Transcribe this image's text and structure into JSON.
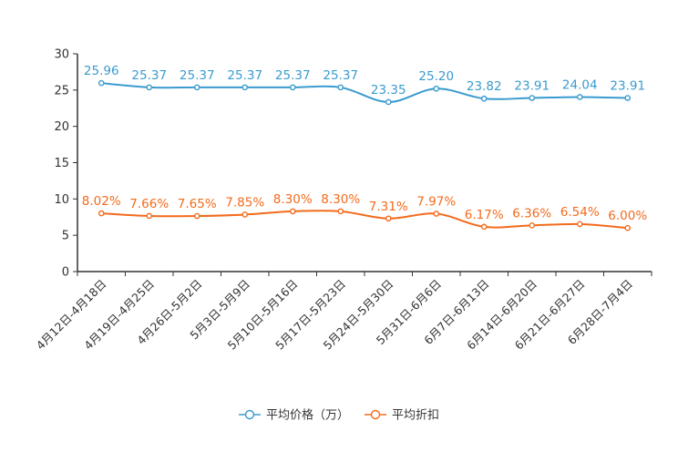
{
  "colors": {
    "price": "#3a9bcf",
    "discount": "#f26b1d",
    "axis": "#333333"
  },
  "chart_data": {
    "type": "line",
    "title": "",
    "xlabel": "",
    "ylabel": "",
    "ylim": [
      0,
      30
    ],
    "yticks": [
      "0",
      "5",
      "10",
      "15",
      "20",
      "25",
      "30"
    ],
    "categories": [
      "4月12日-4月18日",
      "4月19日-4月25日",
      "4月26日-5月2日",
      "5月3日-5月9日",
      "5月10日-5月16日",
      "5月17日-5月23日",
      "5月24日-5月30日",
      "5月31日-6月6日",
      "6月7日-6月13日",
      "6月14日-6月20日",
      "6月21日-6月27日",
      "6月28日-7月4日"
    ],
    "series": [
      {
        "name": "平均价格（万）",
        "values": [
          25.96,
          25.37,
          25.37,
          25.37,
          25.37,
          25.37,
          23.35,
          25.2,
          23.82,
          23.91,
          24.04,
          23.91
        ],
        "labels": [
          "25.96",
          "25.37",
          "25.37",
          "25.37",
          "25.37",
          "25.37",
          "23.35",
          "25.20",
          "23.82",
          "23.91",
          "24.04",
          "23.91"
        ]
      },
      {
        "name": "平均折扣",
        "values": [
          8.02,
          7.66,
          7.65,
          7.85,
          8.3,
          8.3,
          7.31,
          7.97,
          6.17,
          6.36,
          6.54,
          6.0
        ],
        "labels": [
          "8.02%",
          "7.66%",
          "7.65%",
          "7.85%",
          "8.30%",
          "8.30%",
          "7.31%",
          "7.97%",
          "6.17%",
          "6.36%",
          "6.54%",
          "6.00%"
        ]
      }
    ],
    "legend": {
      "position": "bottom"
    }
  }
}
